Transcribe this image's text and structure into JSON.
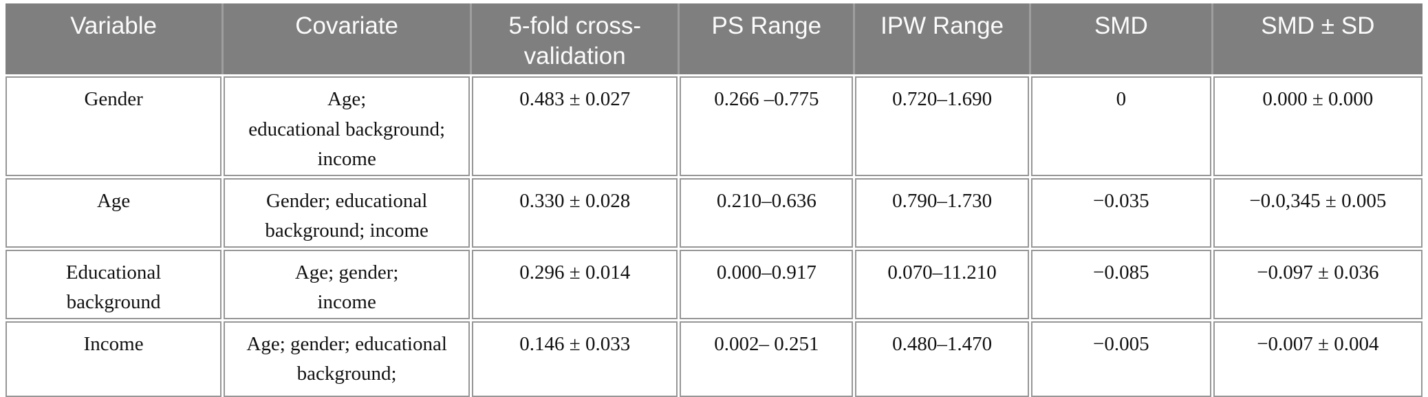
{
  "colors": {
    "header_background": "#7f7f7f",
    "header_divider": "#9e9e9e",
    "header_text": "#fcfcfc",
    "cell_border": "#969696",
    "cell_text": "#111111",
    "page_background": "#ffffff"
  },
  "table": {
    "columns": [
      {
        "label": "Variable"
      },
      {
        "label": "Covariate"
      },
      {
        "label": "5-fold cross-validation"
      },
      {
        "label": "PS Range"
      },
      {
        "label": "IPW Range"
      },
      {
        "label": "SMD"
      },
      {
        "label": "SMD ± SD"
      }
    ],
    "rows": [
      {
        "variable": "Gender",
        "covariate": "Age;\neducational background;\nincome",
        "cv": "0.483 ± 0.027",
        "ps_range": "0.266 –0.775",
        "ipw_range": "0.720–1.690",
        "smd": "0",
        "smd_sd": "0.000 ± 0.000"
      },
      {
        "variable": "Age",
        "covariate": "Gender; educational\nbackground; income",
        "cv": "0.330 ± 0.028",
        "ps_range": "0.210–0.636",
        "ipw_range": "0.790–1.730",
        "smd": "−0.035",
        "smd_sd": "−0.0,345 ± 0.005"
      },
      {
        "variable": "Educational\nbackground",
        "covariate": "Age; gender;\nincome",
        "cv": "0.296 ± 0.014",
        "ps_range": "0.000–0.917",
        "ipw_range": "0.070–11.210",
        "smd": "−0.085",
        "smd_sd": "−0.097 ± 0.036"
      },
      {
        "variable": "Income",
        "covariate": "Age; gender; educational\nbackground;",
        "cv": "0.146 ± 0.033",
        "ps_range": "0.002– 0.251",
        "ipw_range": "0.480–1.470",
        "smd": "−0.005",
        "smd_sd": "−0.007 ± 0.004"
      }
    ]
  }
}
